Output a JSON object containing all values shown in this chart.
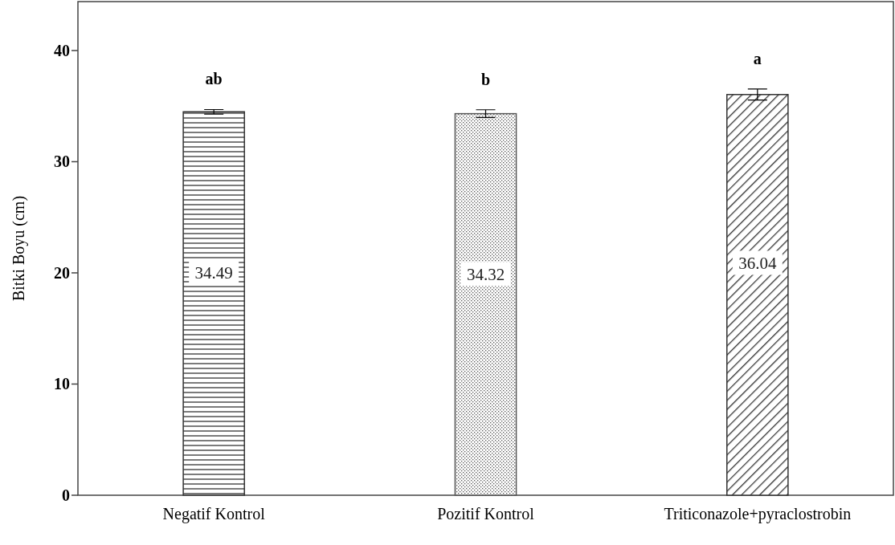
{
  "chart_data": {
    "type": "bar",
    "ylabel": "Bitki Boyu (cm)",
    "categories": [
      "Negatif Kontrol",
      "Pozitif Kontrol",
      "Triticonazole+pyraclostrobin"
    ],
    "values": [
      34.49,
      34.32,
      36.04
    ],
    "errors": [
      0.2,
      0.35,
      0.5
    ],
    "colors": [
      "#333333",
      "#555555",
      "#333333"
    ],
    "ylim": [
      0,
      44.4
    ],
    "yticks": [
      0,
      10,
      20,
      30,
      40
    ],
    "grid": false,
    "data_labels": true,
    "annotations": [
      "ab",
      "b",
      "a"
    ]
  }
}
